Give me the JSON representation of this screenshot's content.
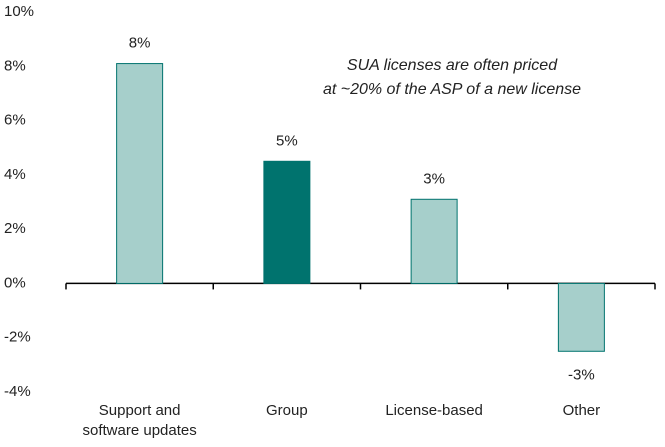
{
  "chart_data": {
    "type": "bar",
    "categories": [
      "Support and software updates",
      "Group",
      "License-based",
      "Other"
    ],
    "values": [
      8.1,
      4.5,
      3.1,
      -2.5
    ],
    "value_labels": [
      "8%",
      "5%",
      "3%",
      "-3%"
    ],
    "colors": [
      "#a6cfcb",
      "#00736e",
      "#a6cfcb",
      "#a6cfcb"
    ],
    "edge_color": "#00736e",
    "annotation": [
      "SUA licenses are often priced",
      "at ~20% of the ASP of a new license"
    ],
    "ylim": [
      -4,
      10
    ],
    "yticks": [
      {
        "value": -4,
        "label": "-4%"
      },
      {
        "value": -2,
        "label": "-2%"
      },
      {
        "value": 0,
        "label": "0%"
      },
      {
        "value": 2,
        "label": "2%"
      },
      {
        "value": 4,
        "label": "4%"
      },
      {
        "value": 6,
        "label": "6%"
      },
      {
        "value": 8,
        "label": "8%"
      },
      {
        "value": 10,
        "label": "10%"
      }
    ],
    "grid": false
  }
}
